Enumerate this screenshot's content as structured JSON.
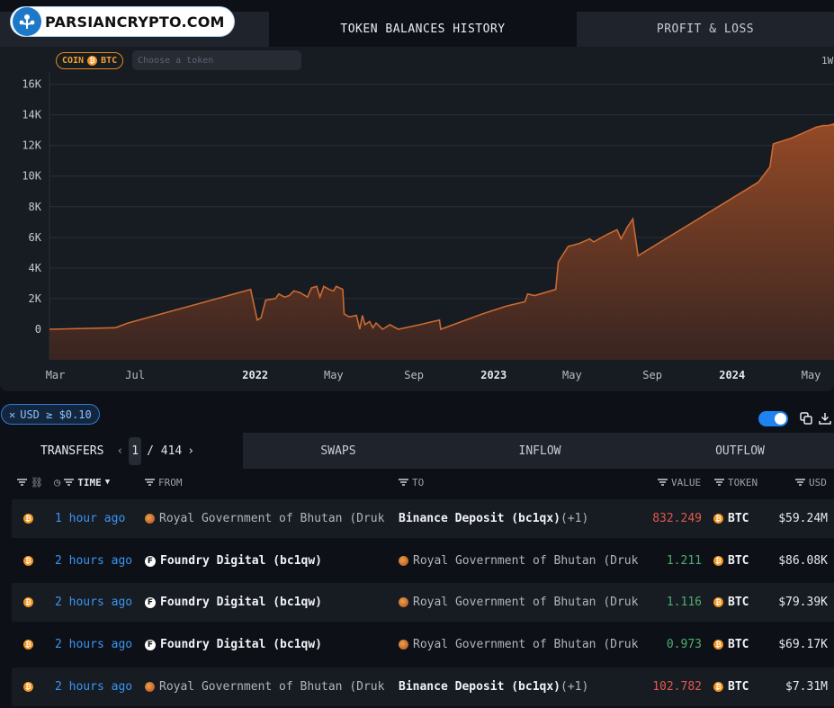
{
  "logo": {
    "text": "PARSIANCRYPTO.COM"
  },
  "top_tabs": [
    {
      "label": ""
    },
    {
      "label": "TOKEN BALANCES HISTORY"
    },
    {
      "label": "PROFIT & LOSS"
    }
  ],
  "chart_controls": {
    "coin_label": "COIN",
    "coin_symbol": "BTC",
    "token_placeholder": "Choose a token",
    "range_label": "1W"
  },
  "chart_data": {
    "type": "area",
    "title": "",
    "xlabel": "",
    "ylabel": "",
    "ylim": [
      -2000,
      16800
    ],
    "y_ticks": [
      "16K",
      "14K",
      "12K",
      "10K",
      "8K",
      "6K",
      "4K",
      "2K",
      "0"
    ],
    "y_tick_values": [
      16000,
      14000,
      12000,
      10000,
      8000,
      6000,
      4000,
      2000,
      0
    ],
    "x_ticks": [
      "Mar",
      "Jul",
      "2022",
      "May",
      "Sep",
      "2023",
      "May",
      "Sep",
      "2024",
      "May"
    ],
    "x_tick_dates": [
      "2021-03-01",
      "2021-07-01",
      "2022-01-01",
      "2022-05-01",
      "2022-09-01",
      "2023-01-01",
      "2023-05-01",
      "2023-09-01",
      "2024-01-01",
      "2024-05-01"
    ],
    "x_tick_bold": [
      false,
      false,
      true,
      false,
      false,
      true,
      false,
      false,
      true,
      false
    ],
    "xlim": [
      "2021-02-20",
      "2024-06-05"
    ],
    "grid": true,
    "color": "#c96a32",
    "series": [
      {
        "values": [
          [
            "2021-02-20",
            0
          ],
          [
            "2021-06-01",
            100
          ],
          [
            "2021-06-20",
            400
          ],
          [
            "2021-12-25",
            2600
          ],
          [
            "2022-01-04",
            600
          ],
          [
            "2022-01-10",
            750
          ],
          [
            "2022-01-17",
            1900
          ],
          [
            "2022-02-01",
            2000
          ],
          [
            "2022-02-06",
            2300
          ],
          [
            "2022-02-15",
            2100
          ],
          [
            "2022-02-22",
            2200
          ],
          [
            "2022-03-01",
            2500
          ],
          [
            "2022-03-10",
            2400
          ],
          [
            "2022-03-22",
            2100
          ],
          [
            "2022-03-28",
            2700
          ],
          [
            "2022-04-05",
            2800
          ],
          [
            "2022-04-10",
            2100
          ],
          [
            "2022-04-16",
            2800
          ],
          [
            "2022-04-24",
            2600
          ],
          [
            "2022-05-01",
            2500
          ],
          [
            "2022-05-05",
            2800
          ],
          [
            "2022-05-15",
            2600
          ],
          [
            "2022-05-17",
            1000
          ],
          [
            "2022-05-25",
            800
          ],
          [
            "2022-06-05",
            900
          ],
          [
            "2022-06-10",
            0
          ],
          [
            "2022-06-14",
            900
          ],
          [
            "2022-06-18",
            300
          ],
          [
            "2022-06-25",
            500
          ],
          [
            "2022-06-30",
            100
          ],
          [
            "2022-07-05",
            400
          ],
          [
            "2022-07-15",
            0
          ],
          [
            "2022-07-26",
            300
          ],
          [
            "2022-08-08",
            0
          ],
          [
            "2022-09-10",
            300
          ],
          [
            "2022-10-10",
            600
          ],
          [
            "2022-10-12",
            0
          ],
          [
            "2022-12-15",
            1000
          ],
          [
            "2023-01-20",
            1500
          ],
          [
            "2023-02-18",
            1800
          ],
          [
            "2023-02-22",
            2300
          ],
          [
            "2023-03-05",
            2200
          ],
          [
            "2023-04-06",
            2600
          ],
          [
            "2023-04-10",
            4400
          ],
          [
            "2023-04-25",
            5400
          ],
          [
            "2023-05-12",
            5600
          ],
          [
            "2023-05-28",
            5900
          ],
          [
            "2023-06-03",
            5700
          ],
          [
            "2023-06-24",
            6200
          ],
          [
            "2023-07-09",
            6500
          ],
          [
            "2023-07-15",
            5900
          ],
          [
            "2023-07-25",
            6700
          ],
          [
            "2023-08-02",
            7200
          ],
          [
            "2023-08-10",
            4800
          ],
          [
            "2024-02-10",
            9600
          ],
          [
            "2024-02-28",
            10600
          ],
          [
            "2024-03-04",
            12100
          ],
          [
            "2024-04-02",
            12500
          ],
          [
            "2024-05-09",
            13200
          ],
          [
            "2024-05-20",
            13300
          ],
          [
            "2024-05-27",
            13300
          ],
          [
            "2024-06-04",
            13400
          ],
          [
            "2024-06-05",
            13300
          ]
        ]
      }
    ]
  },
  "filters": {
    "usd_filter_label": "USD ≥ $0.10"
  },
  "table_tabs": {
    "transfers": "TRANSFERS",
    "page_current": "1",
    "page_total": "/ 414",
    "swaps": "SWAPS",
    "inflow": "INFLOW",
    "outflow": "OUTFLOW"
  },
  "columns": {
    "time": "TIME",
    "from": "FROM",
    "to": "TO",
    "value": "VALUE",
    "token": "TOKEN",
    "usd": "USD"
  },
  "rows": [
    {
      "time": "1 hour ago",
      "from": "Royal Government of Bhutan (Druk",
      "from_type": "bhutan",
      "from_bold": false,
      "to": "Binance Deposit (bc1qx)",
      "to_extra": "(+1)",
      "to_type": "none",
      "to_bold": true,
      "value": "832.249",
      "direction": "out",
      "token": "BTC",
      "usd": "$59.24M"
    },
    {
      "time": "2 hours ago",
      "from": "Foundry Digital (bc1qw)",
      "from_type": "foundry",
      "from_bold": true,
      "to": "Royal Government of Bhutan (Druk",
      "to_extra": "",
      "to_type": "bhutan",
      "to_bold": false,
      "value": "1.211",
      "direction": "in",
      "token": "BTC",
      "usd": "$86.08K"
    },
    {
      "time": "2 hours ago",
      "from": "Foundry Digital (bc1qw)",
      "from_type": "foundry",
      "from_bold": true,
      "to": "Royal Government of Bhutan (Druk",
      "to_extra": "",
      "to_type": "bhutan",
      "to_bold": false,
      "value": "1.116",
      "direction": "in",
      "token": "BTC",
      "usd": "$79.39K"
    },
    {
      "time": "2 hours ago",
      "from": "Foundry Digital (bc1qw)",
      "from_type": "foundry",
      "from_bold": true,
      "to": "Royal Government of Bhutan (Druk",
      "to_extra": "",
      "to_type": "bhutan",
      "to_bold": false,
      "value": "0.973",
      "direction": "in",
      "token": "BTC",
      "usd": "$69.17K"
    },
    {
      "time": "2 hours ago",
      "from": "Royal Government of Bhutan (Druk",
      "from_type": "bhutan",
      "from_bold": false,
      "to": "Binance Deposit (bc1qx)",
      "to_extra": "(+1)",
      "to_type": "none",
      "to_bold": true,
      "value": "102.782",
      "direction": "out",
      "token": "BTC",
      "usd": "$7.31M"
    }
  ],
  "colors": {
    "background": "#0d1117",
    "panel": "#171b22",
    "accent_blue": "#1e82ef",
    "outflow": "#e0594b",
    "inflow": "#4caf6e",
    "area_fill": "#c96a32",
    "btc": "#f7931a"
  }
}
